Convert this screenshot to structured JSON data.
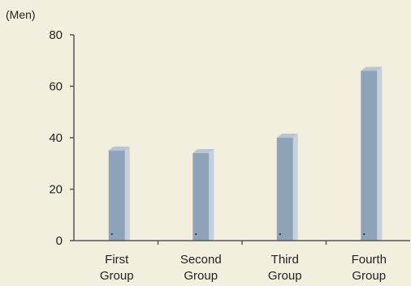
{
  "chart_data": {
    "type": "bar",
    "unit_label": "(Men)",
    "categories": [
      [
        "First",
        "Group"
      ],
      [
        "Second",
        "Group"
      ],
      [
        "Third",
        "Group"
      ],
      [
        "Fourth",
        "Group"
      ]
    ],
    "values": [
      35,
      34,
      40,
      66
    ],
    "ylim": [
      0,
      80
    ],
    "yticks": [
      0,
      20,
      40,
      60,
      80
    ],
    "grid": false,
    "colors": {
      "background": "#f3efdf",
      "bar_front": "#8ea3b8",
      "bar_side": "#c5d0dc",
      "bar_top": "#b8c6d4",
      "axis": "#555555"
    }
  }
}
